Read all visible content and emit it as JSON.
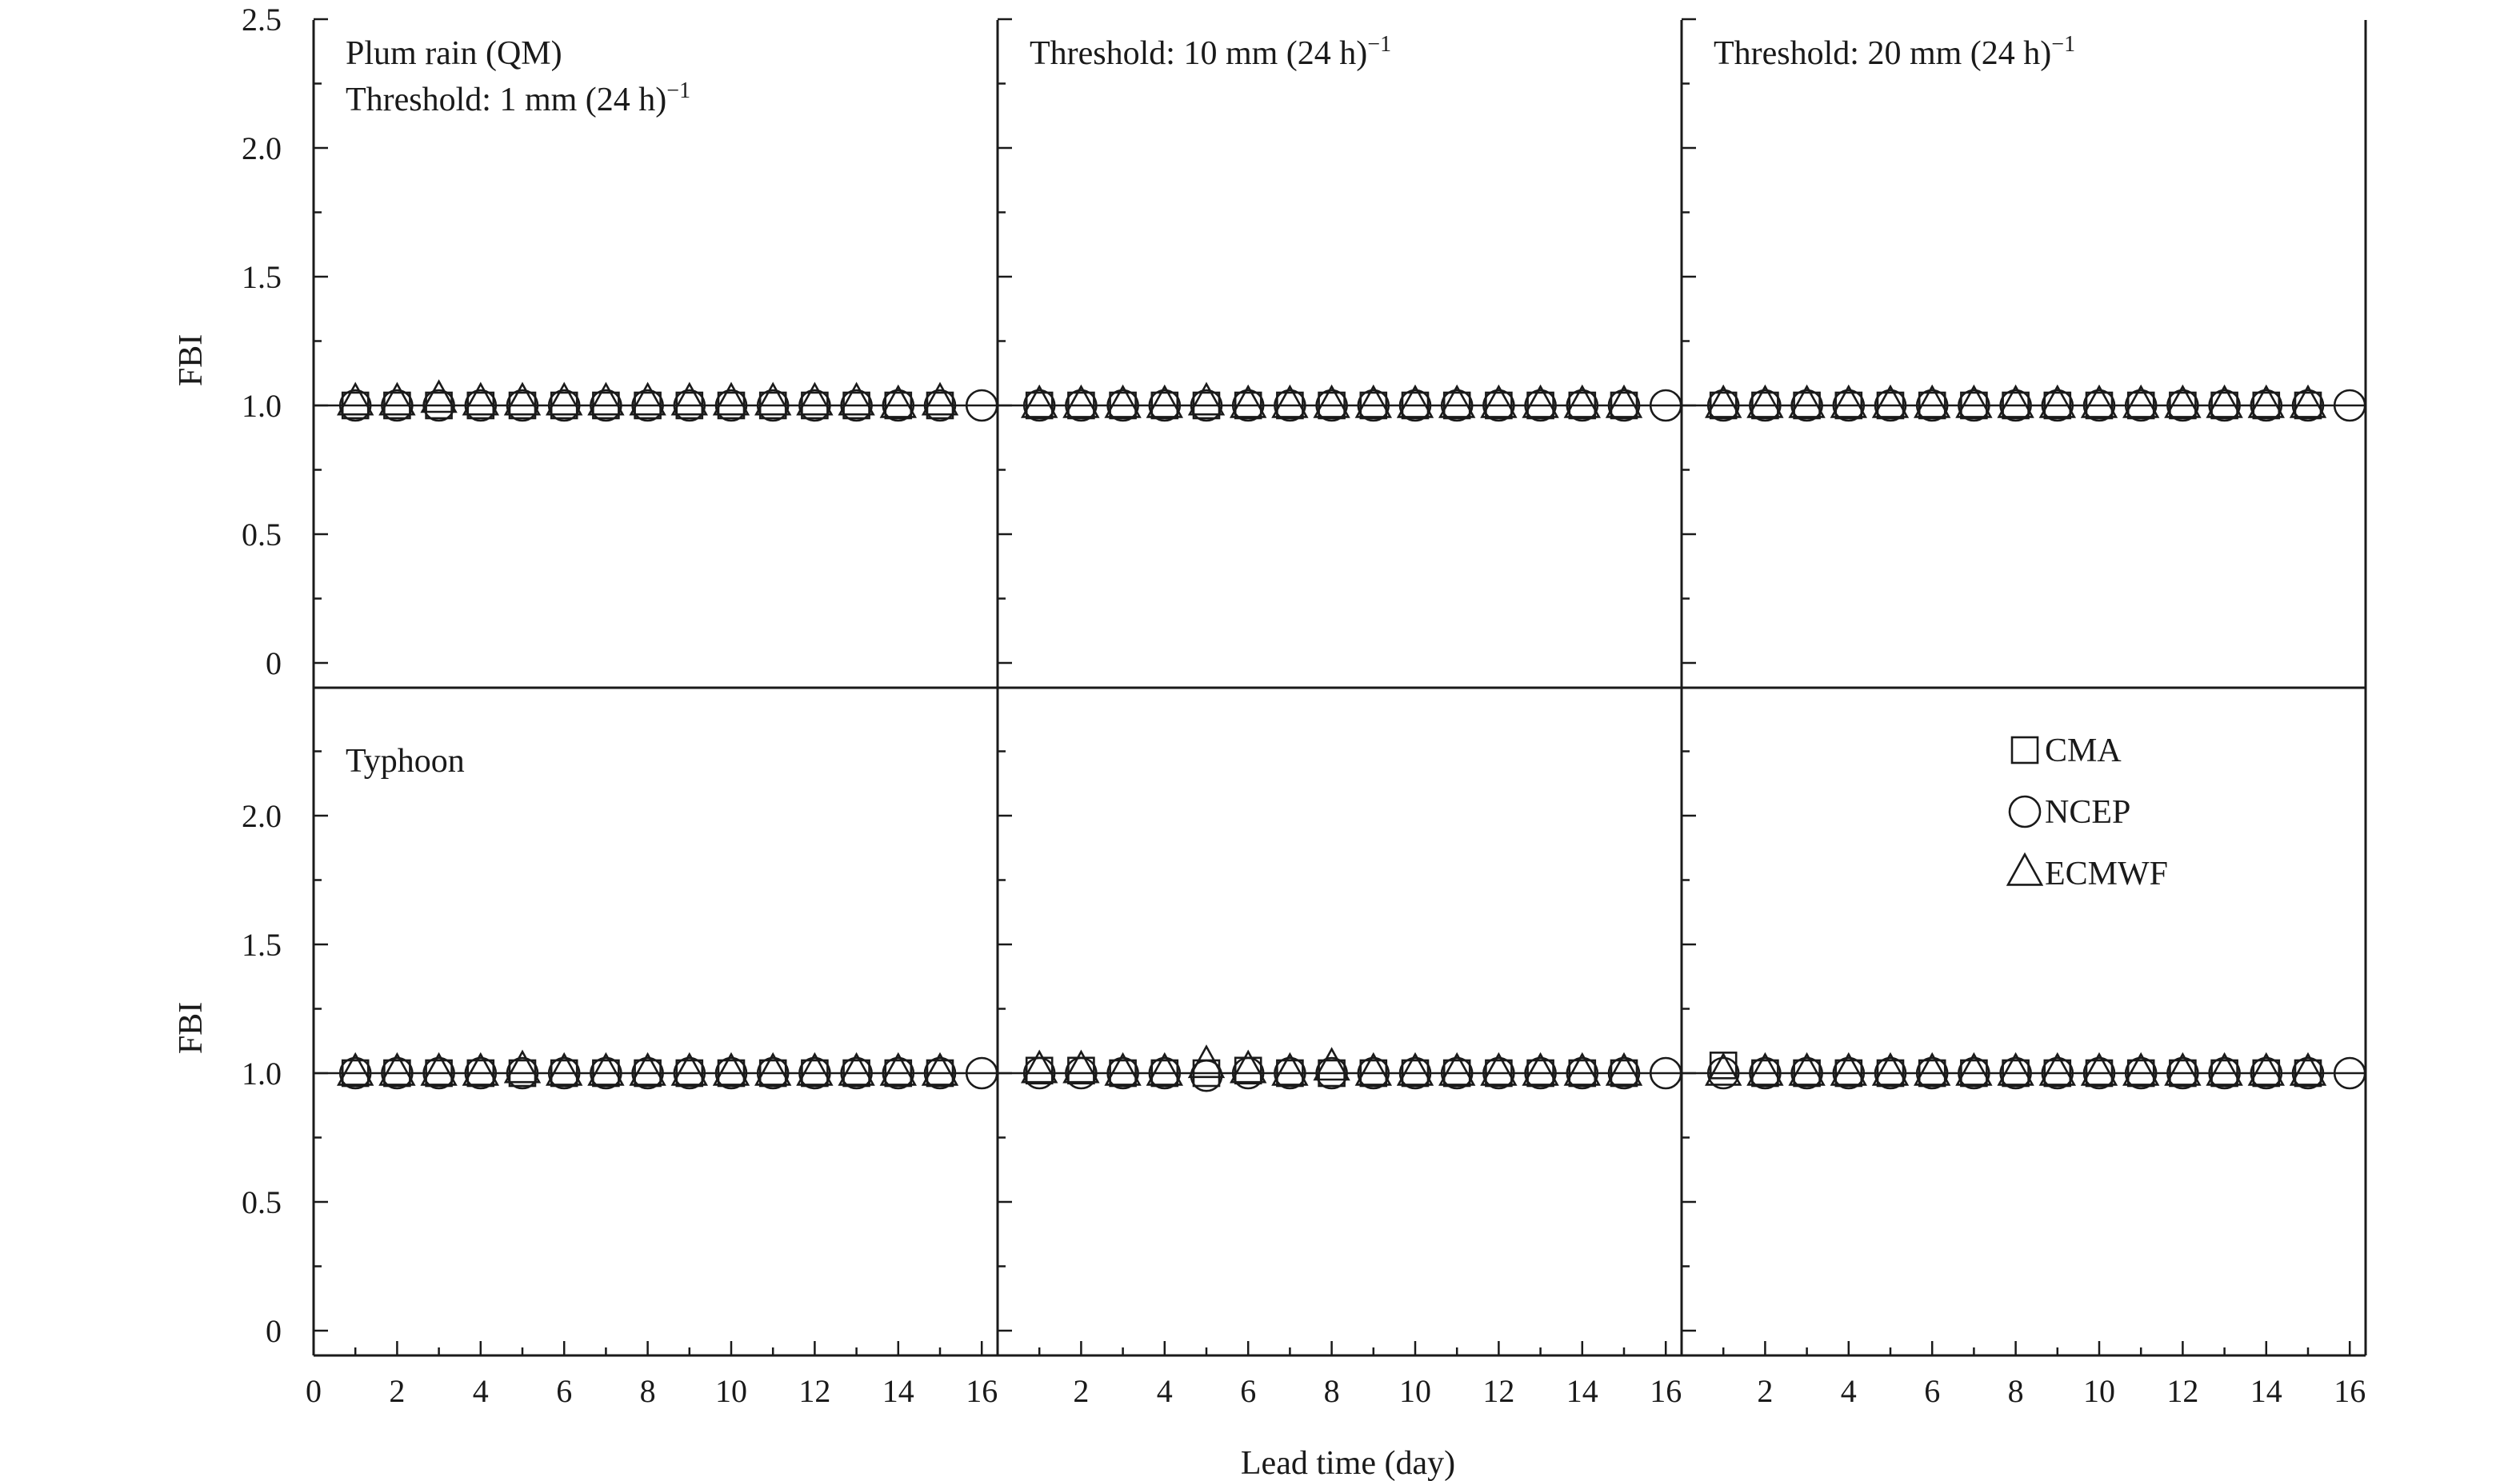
{
  "chart_data": {
    "type": "scatter",
    "layout": {
      "rows": 2,
      "cols": 3
    },
    "xlabel": "Lead time (day)",
    "ylabel": "FBI",
    "xlim": [
      0,
      16.5
    ],
    "ylim": [
      -0.1,
      2.5
    ],
    "reference_line_y": 1.0,
    "x": [
      1,
      2,
      3,
      4,
      5,
      6,
      7,
      8,
      9,
      10,
      11,
      12,
      13,
      14,
      15,
      16
    ],
    "x_ticks_first_column": [
      0,
      2,
      4,
      6,
      8,
      10,
      12,
      14,
      16
    ],
    "x_ticks_other_columns": [
      2,
      4,
      6,
      8,
      10,
      12,
      14,
      16
    ],
    "y_ticks_top_row": [
      "0",
      "0.5",
      "1.0",
      "1.5",
      "2.0",
      "2.5"
    ],
    "y_ticks_bottom_row": [
      "0",
      "0.5",
      "1.0",
      "1.5",
      "2.0"
    ],
    "legend": {
      "position": "top-right of bottom-right panel",
      "entries": [
        {
          "name": "CMA",
          "marker": "square"
        },
        {
          "name": "NCEP",
          "marker": "circle"
        },
        {
          "name": "ECMWF",
          "marker": "triangle"
        }
      ]
    },
    "panels": [
      {
        "row": 0,
        "col": 0,
        "labels": [
          "Plum rain (QM)",
          "Threshold: 1 mm (24 h)"
        ],
        "label_superscript": "−1",
        "series": [
          {
            "name": "CMA",
            "values": [
              1.0,
              1.0,
              1.0,
              1.0,
              1.0,
              1.0,
              1.0,
              1.0,
              1.0,
              1.0,
              1.0,
              1.0,
              1.0,
              1.0,
              1.0,
              null
            ]
          },
          {
            "name": "NCEP",
            "values": [
              1.0,
              1.0,
              1.0,
              1.0,
              1.0,
              1.0,
              1.0,
              1.0,
              1.0,
              1.0,
              1.0,
              1.0,
              1.0,
              1.0,
              1.0,
              1.0
            ]
          },
          {
            "name": "ECMWF",
            "values": [
              1.01,
              1.01,
              1.02,
              1.01,
              1.01,
              1.01,
              1.01,
              1.01,
              1.01,
              1.01,
              1.01,
              1.01,
              1.01,
              1.0,
              1.01,
              null
            ]
          }
        ]
      },
      {
        "row": 0,
        "col": 1,
        "labels": [
          "Threshold: 10 mm (24 h)"
        ],
        "label_superscript": "−1",
        "series": [
          {
            "name": "CMA",
            "values": [
              1.0,
              1.0,
              1.0,
              1.0,
              1.0,
              1.0,
              1.0,
              1.0,
              1.0,
              1.0,
              1.0,
              1.0,
              1.0,
              1.0,
              1.0,
              null
            ]
          },
          {
            "name": "NCEP",
            "values": [
              1.0,
              1.0,
              1.0,
              1.0,
              1.0,
              1.0,
              1.0,
              1.0,
              1.0,
              1.0,
              1.0,
              1.0,
              1.0,
              1.0,
              1.0,
              1.0
            ]
          },
          {
            "name": "ECMWF",
            "values": [
              1.0,
              1.0,
              1.0,
              1.0,
              1.01,
              1.0,
              1.0,
              1.0,
              1.0,
              1.0,
              1.0,
              1.0,
              1.0,
              1.0,
              1.0,
              null
            ]
          }
        ]
      },
      {
        "row": 0,
        "col": 2,
        "labels": [
          "Threshold: 20 mm (24 h)"
        ],
        "label_superscript": "−1",
        "series": [
          {
            "name": "CMA",
            "values": [
              1.0,
              1.0,
              1.0,
              1.0,
              1.0,
              1.0,
              1.0,
              1.0,
              1.0,
              1.0,
              1.0,
              1.0,
              1.0,
              1.0,
              1.0,
              null
            ]
          },
          {
            "name": "NCEP",
            "values": [
              1.0,
              1.0,
              1.0,
              1.0,
              1.0,
              1.0,
              1.0,
              1.0,
              1.0,
              1.0,
              1.0,
              1.0,
              1.0,
              1.0,
              1.0,
              1.0
            ]
          },
          {
            "name": "ECMWF",
            "values": [
              1.0,
              1.0,
              1.0,
              1.0,
              1.0,
              1.0,
              1.0,
              1.0,
              1.0,
              1.0,
              1.0,
              1.0,
              1.0,
              1.0,
              1.0,
              null
            ]
          }
        ]
      },
      {
        "row": 1,
        "col": 0,
        "labels": [
          "Typhoon"
        ],
        "label_superscript": "",
        "series": [
          {
            "name": "CMA",
            "values": [
              1.0,
              1.0,
              1.0,
              1.0,
              1.0,
              1.0,
              1.0,
              1.0,
              1.0,
              1.0,
              1.0,
              1.0,
              1.0,
              1.0,
              1.0,
              null
            ]
          },
          {
            "name": "NCEP",
            "values": [
              1.0,
              1.0,
              1.0,
              1.0,
              1.0,
              1.0,
              1.0,
              1.0,
              1.0,
              1.0,
              1.0,
              1.0,
              1.0,
              1.0,
              1.0,
              1.0
            ]
          },
          {
            "name": "ECMWF",
            "values": [
              1.0,
              1.0,
              1.0,
              1.0,
              1.01,
              1.0,
              1.0,
              1.0,
              1.0,
              1.0,
              1.0,
              1.0,
              1.0,
              1.0,
              1.0,
              null
            ]
          }
        ]
      },
      {
        "row": 1,
        "col": 1,
        "labels": [],
        "label_superscript": "",
        "series": [
          {
            "name": "CMA",
            "values": [
              1.01,
              1.01,
              1.0,
              1.0,
              1.0,
              1.01,
              1.0,
              1.0,
              1.0,
              1.0,
              1.0,
              1.0,
              1.0,
              1.0,
              1.0,
              null
            ]
          },
          {
            "name": "NCEP",
            "values": [
              1.0,
              1.0,
              1.0,
              1.0,
              0.99,
              1.0,
              1.0,
              1.0,
              1.0,
              1.0,
              1.0,
              1.0,
              1.0,
              1.0,
              1.0,
              1.0
            ]
          },
          {
            "name": "ECMWF",
            "values": [
              1.01,
              1.01,
              1.0,
              1.0,
              1.03,
              1.01,
              1.0,
              1.02,
              1.0,
              1.0,
              1.0,
              1.0,
              1.0,
              1.0,
              1.0,
              null
            ]
          }
        ]
      },
      {
        "row": 1,
        "col": 2,
        "labels": [],
        "label_superscript": "",
        "series": [
          {
            "name": "CMA",
            "values": [
              1.03,
              1.0,
              1.0,
              1.0,
              1.0,
              1.0,
              1.0,
              1.0,
              1.0,
              1.0,
              1.0,
              1.0,
              1.0,
              1.0,
              1.0,
              null
            ]
          },
          {
            "name": "NCEP",
            "values": [
              1.0,
              1.0,
              1.0,
              1.0,
              1.0,
              1.0,
              1.0,
              1.0,
              1.0,
              1.0,
              1.0,
              1.0,
              1.0,
              1.0,
              1.0,
              1.0
            ]
          },
          {
            "name": "ECMWF",
            "values": [
              1.0,
              1.0,
              1.0,
              1.0,
              1.0,
              1.0,
              1.0,
              1.0,
              1.0,
              1.0,
              1.0,
              1.0,
              1.0,
              1.0,
              1.0,
              null
            ]
          }
        ]
      }
    ]
  }
}
